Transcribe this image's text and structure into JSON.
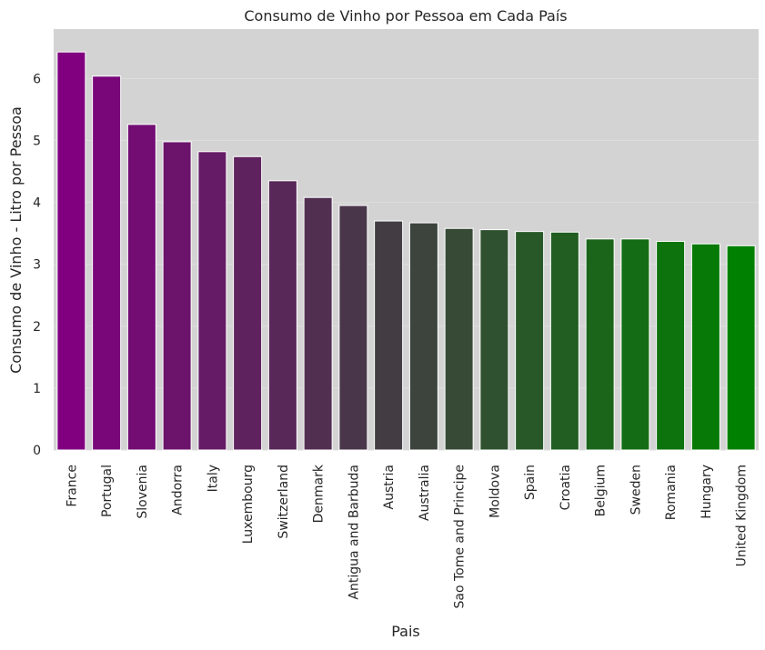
{
  "chart_data": {
    "type": "bar",
    "title": "Consumo de Vinho por Pessoa em Cada País",
    "xlabel": "Pais",
    "ylabel": "Consumo de Vinho - Litro por Pessoa",
    "ylim": [
      0,
      6.8
    ],
    "yticks": [
      0,
      1,
      2,
      3,
      4,
      5,
      6
    ],
    "grid": true,
    "categories": [
      "France",
      "Portugal",
      "Slovenia",
      "Andorra",
      "Italy",
      "Luxembourg",
      "Switzerland",
      "Denmark",
      "Antigua and Barbuda",
      "Austria",
      "Australia",
      "Sao Tome and Principe",
      "Moldova",
      "Spain",
      "Croatia",
      "Belgium",
      "Sweden",
      "Romania",
      "Hungary",
      "United Kingdom"
    ],
    "values": [
      6.43,
      6.04,
      5.26,
      4.98,
      4.82,
      4.74,
      4.35,
      4.08,
      3.95,
      3.7,
      3.67,
      3.58,
      3.56,
      3.53,
      3.52,
      3.41,
      3.41,
      3.37,
      3.33,
      3.3
    ],
    "colors": {
      "start": "#800080",
      "end": "#008000",
      "plot_background": "#d3d3d3",
      "grid": "#dedede",
      "bar_edge": "#ffffff"
    }
  }
}
